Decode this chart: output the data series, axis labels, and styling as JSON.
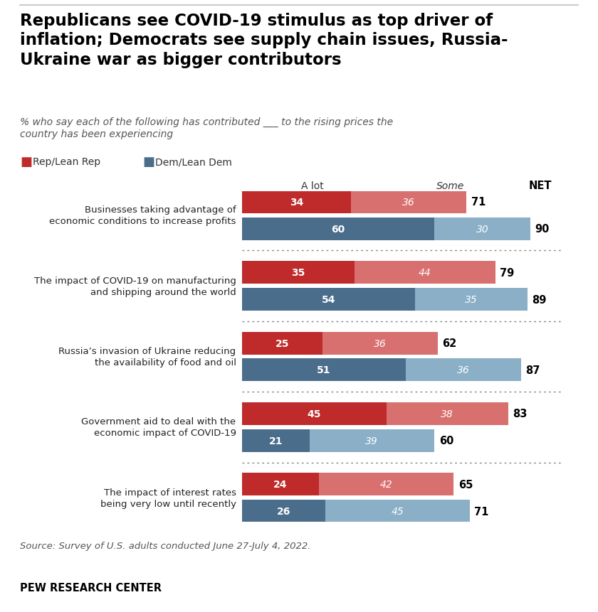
{
  "title_line1": "Republicans see COVID-19 stimulus as top driver of",
  "title_line2": "inflation; Democrats see supply chain issues, Russia-",
  "title_line3": "Ukraine war as bigger contributors",
  "subtitle": "% who say each of the following has contributed ___ to the rising prices the\ncountry has been experiencing",
  "categories": [
    "Businesses taking advantage of\neconomic conditions to increase profits",
    "The impact of COVID-19 on manufacturing\nand shipping around the world",
    "Russia’s invasion of Ukraine reducing\nthe availability of food and oil",
    "Government aid to deal with the\neconomic impact of COVID-19",
    "The impact of interest rates\nbeing very low until recently"
  ],
  "rep_alot": [
    34,
    35,
    25,
    45,
    24
  ],
  "rep_some": [
    36,
    44,
    36,
    38,
    42
  ],
  "rep_net": [
    71,
    79,
    62,
    83,
    65
  ],
  "dem_alot": [
    60,
    54,
    51,
    21,
    26
  ],
  "dem_some": [
    30,
    35,
    36,
    39,
    45
  ],
  "dem_net": [
    90,
    89,
    87,
    60,
    71
  ],
  "rep_alot_color": "#bf2b2b",
  "rep_some_color": "#d97070",
  "dem_alot_color": "#4a6d8c",
  "dem_some_color": "#8aafc7",
  "legend_rep_color": "#bf2b2b",
  "legend_dem_color": "#4a6d8c",
  "source_text": "Source: Survey of U.S. adults conducted June 27-July 4, 2022.",
  "footer_text": "PEW RESEARCH CENTER",
  "background_color": "#ffffff"
}
